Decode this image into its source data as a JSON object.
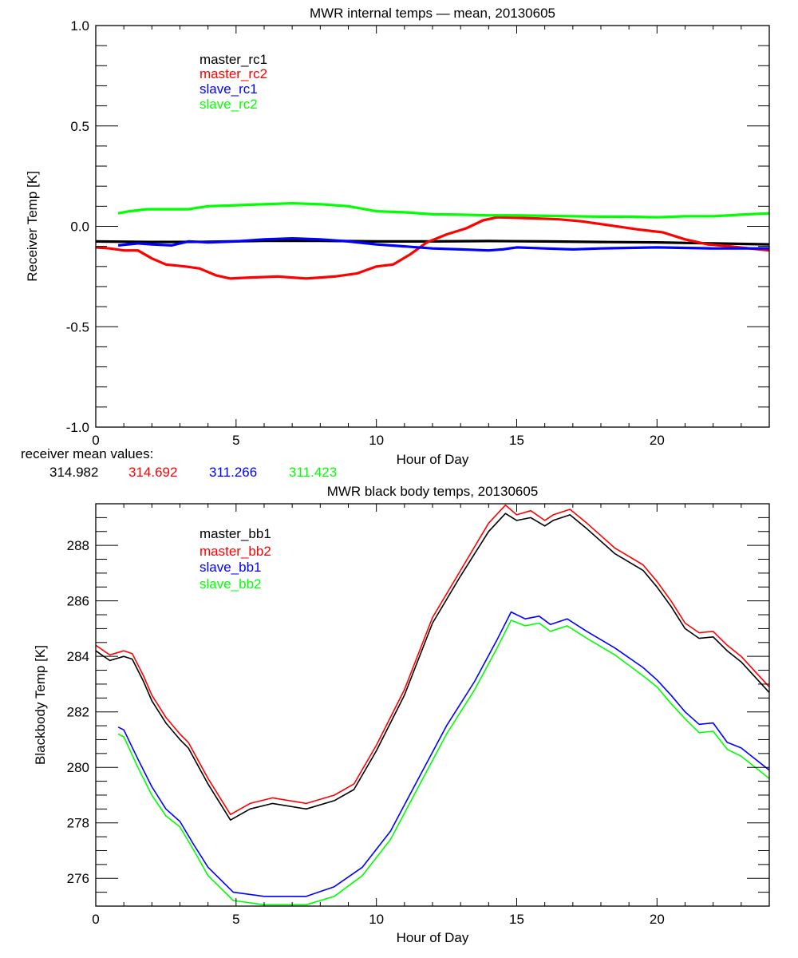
{
  "chart_data": [
    {
      "type": "line",
      "title": "MWR internal temps — mean, 20130605",
      "xlabel": "Hour of Day",
      "ylabel": "Receiver Temp [K]",
      "xlim": [
        0,
        24
      ],
      "ylim": [
        -1.0,
        1.0
      ],
      "xticks": [
        0,
        5,
        10,
        15,
        20
      ],
      "xtick_labels": [
        "0",
        "5",
        "10",
        "15",
        "20"
      ],
      "yticks": [
        1.0,
        0.5,
        0.0,
        -0.5,
        -1.0
      ],
      "ytick_labels": [
        "1.0",
        "0.5",
        "0.0",
        "-0.5",
        "-1.0"
      ],
      "grid": false,
      "legend_position": "top-left",
      "series": [
        {
          "name": "master_rc1",
          "color": "#000000",
          "points": [
            [
              0,
              -0.075
            ],
            [
              2,
              -0.078
            ],
            [
              4,
              -0.077
            ],
            [
              6,
              -0.072
            ],
            [
              8,
              -0.072
            ],
            [
              10,
              -0.075
            ],
            [
              12,
              -0.075
            ],
            [
              14,
              -0.073
            ],
            [
              16,
              -0.075
            ],
            [
              18,
              -0.078
            ],
            [
              20,
              -0.08
            ],
            [
              22,
              -0.085
            ],
            [
              24,
              -0.09
            ]
          ]
        },
        {
          "name": "master_rc2",
          "color": "#ff0000",
          "points": [
            [
              0,
              -0.105
            ],
            [
              0.5,
              -0.11
            ],
            [
              1,
              -0.12
            ],
            [
              1.5,
              -0.12
            ],
            [
              2,
              -0.16
            ],
            [
              2.5,
              -0.19
            ],
            [
              3.2,
              -0.2
            ],
            [
              3.7,
              -0.21
            ],
            [
              4.3,
              -0.245
            ],
            [
              4.8,
              -0.26
            ],
            [
              5.5,
              -0.255
            ],
            [
              6.5,
              -0.25
            ],
            [
              7.5,
              -0.26
            ],
            [
              8.5,
              -0.25
            ],
            [
              9.3,
              -0.235
            ],
            [
              10,
              -0.2
            ],
            [
              10.6,
              -0.19
            ],
            [
              11.2,
              -0.14
            ],
            [
              11.8,
              -0.08
            ],
            [
              12.5,
              -0.04
            ],
            [
              13.2,
              -0.01
            ],
            [
              13.8,
              0.03
            ],
            [
              14.3,
              0.045
            ],
            [
              15.5,
              0.04
            ],
            [
              16.5,
              0.035
            ],
            [
              17.3,
              0.025
            ],
            [
              18.3,
              0.005
            ],
            [
              19.3,
              -0.015
            ],
            [
              20.2,
              -0.03
            ],
            [
              21,
              -0.065
            ],
            [
              21.8,
              -0.09
            ],
            [
              22.6,
              -0.1
            ],
            [
              23.3,
              -0.11
            ],
            [
              24,
              -0.12
            ]
          ]
        },
        {
          "name": "slave_rc1",
          "color": "#0000ff",
          "points": [
            [
              0.8,
              -0.095
            ],
            [
              1.5,
              -0.085
            ],
            [
              2,
              -0.09
            ],
            [
              2.7,
              -0.095
            ],
            [
              3.3,
              -0.075
            ],
            [
              4,
              -0.08
            ],
            [
              5,
              -0.075
            ],
            [
              6,
              -0.065
            ],
            [
              7,
              -0.06
            ],
            [
              8,
              -0.065
            ],
            [
              9,
              -0.075
            ],
            [
              10,
              -0.09
            ],
            [
              11,
              -0.1
            ],
            [
              12,
              -0.11
            ],
            [
              13,
              -0.115
            ],
            [
              14,
              -0.12
            ],
            [
              14.5,
              -0.115
            ],
            [
              15,
              -0.105
            ],
            [
              16,
              -0.11
            ],
            [
              17,
              -0.115
            ],
            [
              18,
              -0.11
            ],
            [
              20,
              -0.105
            ],
            [
              22,
              -0.11
            ],
            [
              24,
              -0.11
            ]
          ]
        },
        {
          "name": "slave_rc2",
          "color": "#00ff00",
          "points": [
            [
              0.8,
              0.065
            ],
            [
              1.2,
              0.075
            ],
            [
              1.8,
              0.085
            ],
            [
              3.3,
              0.085
            ],
            [
              4,
              0.1
            ],
            [
              5,
              0.105
            ],
            [
              6,
              0.11
            ],
            [
              7,
              0.115
            ],
            [
              8,
              0.11
            ],
            [
              9,
              0.1
            ],
            [
              10,
              0.075
            ],
            [
              11,
              0.07
            ],
            [
              12,
              0.06
            ],
            [
              13,
              0.058
            ],
            [
              14,
              0.055
            ],
            [
              15,
              0.055
            ],
            [
              16,
              0.052
            ],
            [
              17,
              0.05
            ],
            [
              18,
              0.048
            ],
            [
              19,
              0.048
            ],
            [
              20,
              0.045
            ],
            [
              21,
              0.05
            ],
            [
              22,
              0.05
            ],
            [
              23,
              0.058
            ],
            [
              24,
              0.065
            ]
          ]
        }
      ]
    },
    {
      "type": "line",
      "title": "MWR black body temps, 20130605",
      "xlabel": "Hour of Day",
      "ylabel": "Blackbody Temp [K]",
      "xlim": [
        0,
        24
      ],
      "ylim": [
        275,
        289.5
      ],
      "xticks": [
        0,
        5,
        10,
        15,
        20
      ],
      "xtick_labels": [
        "0",
        "5",
        "10",
        "15",
        "20"
      ],
      "yticks": [
        276,
        278,
        280,
        282,
        284,
        286,
        288
      ],
      "ytick_labels": [
        "276",
        "278",
        "280",
        "282",
        "284",
        "286",
        "288"
      ],
      "grid": false,
      "legend_position": "top-left",
      "series": [
        {
          "name": "master_bb1",
          "color": "#000000",
          "points": [
            [
              0,
              284.2
            ],
            [
              0.5,
              283.85
            ],
            [
              1,
              284.0
            ],
            [
              1.3,
              283.9
            ],
            [
              1.7,
              283.1
            ],
            [
              2,
              282.4
            ],
            [
              2.5,
              281.6
            ],
            [
              3,
              281.0
            ],
            [
              3.3,
              280.7
            ],
            [
              4,
              279.4
            ],
            [
              4.8,
              278.1
            ],
            [
              5.5,
              278.5
            ],
            [
              6.3,
              278.7
            ],
            [
              7.5,
              278.5
            ],
            [
              8.5,
              278.8
            ],
            [
              9.2,
              279.2
            ],
            [
              10,
              280.6
            ],
            [
              11,
              282.6
            ],
            [
              12,
              285.2
            ],
            [
              13,
              286.9
            ],
            [
              14,
              288.5
            ],
            [
              14.6,
              289.15
            ],
            [
              15,
              288.9
            ],
            [
              15.5,
              289.0
            ],
            [
              16,
              288.7
            ],
            [
              16.3,
              288.9
            ],
            [
              16.9,
              289.1
            ],
            [
              17.5,
              288.6
            ],
            [
              18.5,
              287.7
            ],
            [
              19.5,
              287.1
            ],
            [
              20,
              286.5
            ],
            [
              20.5,
              285.8
            ],
            [
              21,
              285.0
            ],
            [
              21.5,
              284.65
            ],
            [
              22,
              284.7
            ],
            [
              22.5,
              284.2
            ],
            [
              23,
              283.8
            ],
            [
              24,
              282.7
            ]
          ]
        },
        {
          "name": "master_bb2",
          "color": "#ff0000",
          "points": [
            [
              0,
              284.4
            ],
            [
              0.5,
              284.05
            ],
            [
              1,
              284.2
            ],
            [
              1.3,
              284.1
            ],
            [
              1.7,
              283.3
            ],
            [
              2,
              282.6
            ],
            [
              2.5,
              281.8
            ],
            [
              3,
              281.2
            ],
            [
              3.3,
              280.9
            ],
            [
              4,
              279.6
            ],
            [
              4.8,
              278.3
            ],
            [
              5.5,
              278.7
            ],
            [
              6.3,
              278.9
            ],
            [
              7.5,
              278.7
            ],
            [
              8.5,
              279.0
            ],
            [
              9.2,
              279.4
            ],
            [
              10,
              280.8
            ],
            [
              11,
              282.8
            ],
            [
              12,
              285.4
            ],
            [
              13,
              287.1
            ],
            [
              14,
              288.8
            ],
            [
              14.6,
              289.45
            ],
            [
              15,
              289.1
            ],
            [
              15.5,
              289.25
            ],
            [
              16,
              288.9
            ],
            [
              16.3,
              289.1
            ],
            [
              16.9,
              289.3
            ],
            [
              17.5,
              288.8
            ],
            [
              18.5,
              287.9
            ],
            [
              19.5,
              287.3
            ],
            [
              20,
              286.7
            ],
            [
              20.5,
              286.0
            ],
            [
              21,
              285.2
            ],
            [
              21.5,
              284.85
            ],
            [
              22,
              284.9
            ],
            [
              22.5,
              284.4
            ],
            [
              23,
              284.0
            ],
            [
              24,
              282.9
            ]
          ]
        },
        {
          "name": "slave_bb1",
          "color": "#0000ff",
          "points": [
            [
              0.8,
              281.45
            ],
            [
              1,
              281.35
            ],
            [
              1.5,
              280.3
            ],
            [
              2,
              279.3
            ],
            [
              2.5,
              278.5
            ],
            [
              3,
              278.05
            ],
            [
              3.5,
              277.2
            ],
            [
              4,
              276.4
            ],
            [
              4.9,
              275.5
            ],
            [
              6,
              275.35
            ],
            [
              7.5,
              275.35
            ],
            [
              8.5,
              275.7
            ],
            [
              9.5,
              276.4
            ],
            [
              10.5,
              277.7
            ],
            [
              11.5,
              279.6
            ],
            [
              12.5,
              281.5
            ],
            [
              13.5,
              283.1
            ],
            [
              14.3,
              284.6
            ],
            [
              14.8,
              285.6
            ],
            [
              15.3,
              285.35
            ],
            [
              15.8,
              285.45
            ],
            [
              16.2,
              285.15
            ],
            [
              16.8,
              285.35
            ],
            [
              17.5,
              284.9
            ],
            [
              18.5,
              284.3
            ],
            [
              19.5,
              283.6
            ],
            [
              20,
              283.15
            ],
            [
              20.5,
              282.6
            ],
            [
              21,
              282.0
            ],
            [
              21.5,
              281.55
            ],
            [
              22,
              281.6
            ],
            [
              22.5,
              280.9
            ],
            [
              23,
              280.7
            ],
            [
              24,
              279.9
            ]
          ]
        },
        {
          "name": "slave_bb2",
          "color": "#00ff00",
          "points": [
            [
              0.8,
              281.2
            ],
            [
              1,
              281.1
            ],
            [
              1.5,
              280.0
            ],
            [
              2,
              279.0
            ],
            [
              2.5,
              278.25
            ],
            [
              3,
              277.85
            ],
            [
              3.5,
              277.0
            ],
            [
              4,
              276.1
            ],
            [
              4.9,
              275.2
            ],
            [
              6,
              275.05
            ],
            [
              7.5,
              275.05
            ],
            [
              8.5,
              275.35
            ],
            [
              9.5,
              276.1
            ],
            [
              10.5,
              277.4
            ],
            [
              11.5,
              279.3
            ],
            [
              12.5,
              281.2
            ],
            [
              13.5,
              282.8
            ],
            [
              14.3,
              284.3
            ],
            [
              14.8,
              285.3
            ],
            [
              15.3,
              285.1
            ],
            [
              15.8,
              285.2
            ],
            [
              16.2,
              284.9
            ],
            [
              16.8,
              285.1
            ],
            [
              17.5,
              284.65
            ],
            [
              18.5,
              284.05
            ],
            [
              19.5,
              283.3
            ],
            [
              20,
              282.9
            ],
            [
              20.5,
              282.3
            ],
            [
              21,
              281.75
            ],
            [
              21.5,
              281.25
            ],
            [
              22,
              281.3
            ],
            [
              22.5,
              280.65
            ],
            [
              23,
              280.4
            ],
            [
              24,
              279.6
            ]
          ]
        }
      ]
    }
  ],
  "receiver_means": {
    "label": "receiver mean values:",
    "values": [
      {
        "text": "314.982",
        "color": "#000000"
      },
      {
        "text": "314.692",
        "color": "#ff0000"
      },
      {
        "text": "311.266",
        "color": "#0000ff"
      },
      {
        "text": "311.423",
        "color": "#00ff00"
      }
    ]
  }
}
